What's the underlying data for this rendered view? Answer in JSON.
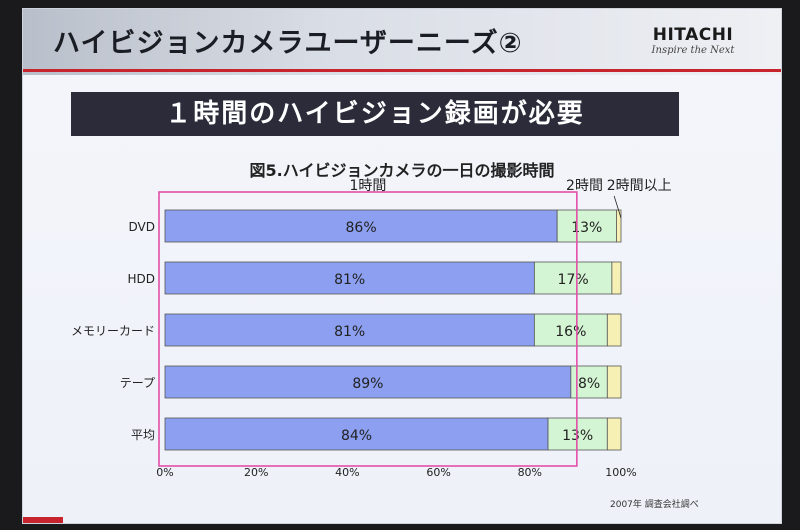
{
  "slide_title": "ハイビジョンカメラユーザーニーズ②",
  "logo": {
    "brand": "HITACHI",
    "tagline": "Inspire the Next"
  },
  "banner": "１時間のハイビジョン録画が必要",
  "note": "2007年 調査会社調べ",
  "chart_data": {
    "type": "bar",
    "orientation": "horizontal",
    "stacked": true,
    "title": "図5.ハイビジョンカメラの一日の撮影時間",
    "categories": [
      "DVD",
      "HDD",
      "メモリーカード",
      "テープ",
      "平均"
    ],
    "series": [
      {
        "name": "1時間",
        "values": [
          86,
          81,
          81,
          89,
          84
        ],
        "labels": [
          "86%",
          "81%",
          "81%",
          "89%",
          "84%"
        ],
        "color": "#8c9ff0"
      },
      {
        "name": "2時間",
        "values": [
          13,
          17,
          16,
          8,
          13
        ],
        "labels": [
          "13%",
          "17%",
          "16%",
          "8%",
          "13%"
        ],
        "color": "#d4f5d4"
      },
      {
        "name": "2時間以上",
        "values": [
          1,
          2,
          3,
          3,
          3
        ],
        "labels": [
          "",
          "",
          "",
          "",
          ""
        ],
        "color": "#f7f0b4"
      }
    ],
    "xticks": [
      "0%",
      "20%",
      "40%",
      "60%",
      "80%",
      "100%"
    ],
    "xlim": [
      0,
      100
    ],
    "grid": false,
    "highlight": "1時間",
    "colors": {
      "highlight_border": "#e34fa8",
      "bar_border": "#555555"
    }
  }
}
